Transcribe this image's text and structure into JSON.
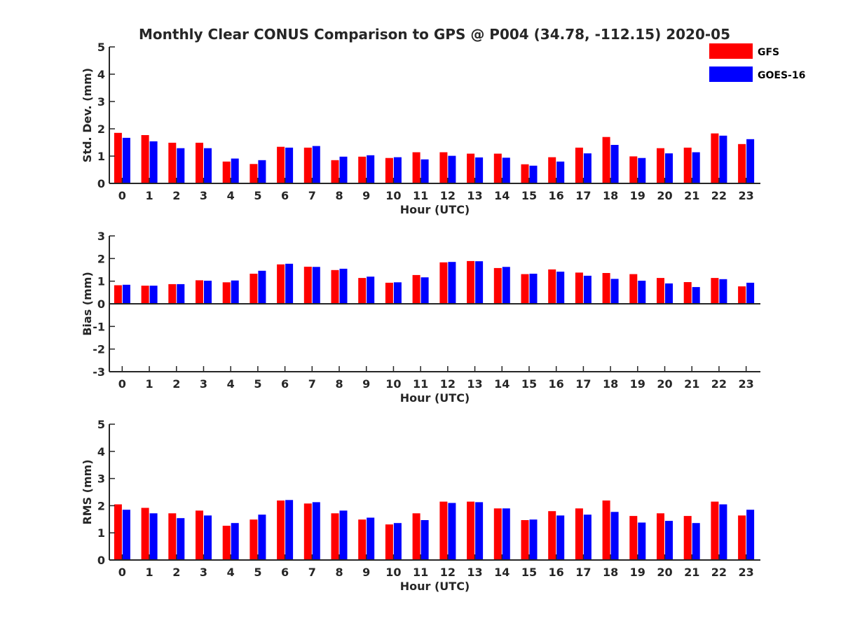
{
  "figure": {
    "title": "Monthly Clear CONUS Comparison to GPS @ P004 (34.78, -112.15) 2020-05"
  },
  "legend": {
    "placement": "top-right",
    "items": [
      {
        "label": "GFS",
        "color": "#ff0000"
      },
      {
        "label": "GOES-16",
        "color": "#0000ff"
      }
    ]
  },
  "chart_data": [
    {
      "type": "bar",
      "xlabel": "Hour (UTC)",
      "ylabel": "Std. Dev. (mm)",
      "ylim": [
        0,
        5
      ],
      "yticks": [
        0,
        1,
        2,
        3,
        4,
        5
      ],
      "categories": [
        "0",
        "1",
        "2",
        "3",
        "4",
        "5",
        "6",
        "7",
        "8",
        "9",
        "10",
        "11",
        "12",
        "13",
        "14",
        "15",
        "16",
        "17",
        "18",
        "19",
        "20",
        "21",
        "22",
        "23"
      ],
      "series": [
        {
          "name": "GFS",
          "color": "#ff0000",
          "values": [
            1.85,
            1.77,
            1.49,
            1.49,
            0.8,
            0.71,
            1.34,
            1.31,
            0.85,
            0.98,
            0.93,
            1.14,
            1.14,
            1.09,
            1.09,
            0.7,
            0.96,
            1.31,
            1.7,
            0.99,
            1.29,
            1.31,
            1.83,
            1.44
          ]
        },
        {
          "name": "GOES-16",
          "color": "#0000ff",
          "values": [
            1.67,
            1.54,
            1.29,
            1.29,
            0.91,
            0.85,
            1.31,
            1.37,
            0.98,
            1.03,
            0.96,
            0.88,
            1.01,
            0.95,
            0.94,
            0.65,
            0.8,
            1.1,
            1.41,
            0.93,
            1.1,
            1.14,
            1.75,
            1.62
          ]
        }
      ]
    },
    {
      "type": "bar",
      "xlabel": "Hour (UTC)",
      "ylabel": "Bias (mm)",
      "ylim": [
        -3,
        3
      ],
      "yticks": [
        -3,
        -2,
        -1,
        0,
        1,
        2,
        3
      ],
      "categories": [
        "0",
        "1",
        "2",
        "3",
        "4",
        "5",
        "6",
        "7",
        "8",
        "9",
        "10",
        "11",
        "12",
        "13",
        "14",
        "15",
        "16",
        "17",
        "18",
        "19",
        "20",
        "21",
        "22",
        "23"
      ],
      "series": [
        {
          "name": "GFS",
          "color": "#ff0000",
          "values": [
            0.82,
            0.8,
            0.87,
            1.04,
            0.95,
            1.33,
            1.74,
            1.64,
            1.49,
            1.14,
            0.93,
            1.27,
            1.83,
            1.89,
            1.58,
            1.31,
            1.52,
            1.38,
            1.36,
            1.31,
            1.14,
            0.96,
            1.14,
            0.77
          ]
        },
        {
          "name": "GOES-16",
          "color": "#0000ff",
          "values": [
            0.84,
            0.8,
            0.87,
            1.02,
            1.03,
            1.46,
            1.77,
            1.63,
            1.55,
            1.2,
            0.95,
            1.17,
            1.85,
            1.88,
            1.63,
            1.33,
            1.42,
            1.24,
            1.1,
            1.02,
            0.9,
            0.74,
            1.09,
            0.93
          ]
        }
      ]
    },
    {
      "type": "bar",
      "xlabel": "Hour (UTC)",
      "ylabel": "RMS (mm)",
      "ylim": [
        0,
        5
      ],
      "yticks": [
        0,
        1,
        2,
        3,
        4,
        5
      ],
      "categories": [
        "0",
        "1",
        "2",
        "3",
        "4",
        "5",
        "6",
        "7",
        "8",
        "9",
        "10",
        "11",
        "12",
        "13",
        "14",
        "15",
        "16",
        "17",
        "18",
        "19",
        "20",
        "21",
        "22",
        "23"
      ],
      "series": [
        {
          "name": "GFS",
          "color": "#ff0000",
          "values": [
            2.05,
            1.92,
            1.72,
            1.82,
            1.26,
            1.49,
            2.19,
            2.08,
            1.72,
            1.49,
            1.31,
            1.72,
            2.15,
            2.15,
            1.9,
            1.47,
            1.8,
            1.9,
            2.19,
            1.62,
            1.72,
            1.62,
            2.15,
            1.64
          ]
        },
        {
          "name": "GOES-16",
          "color": "#0000ff",
          "values": [
            1.85,
            1.72,
            1.54,
            1.64,
            1.36,
            1.67,
            2.21,
            2.13,
            1.82,
            1.56,
            1.36,
            1.47,
            2.1,
            2.13,
            1.9,
            1.49,
            1.64,
            1.67,
            1.77,
            1.38,
            1.44,
            1.36,
            2.05,
            1.85
          ]
        }
      ]
    }
  ]
}
